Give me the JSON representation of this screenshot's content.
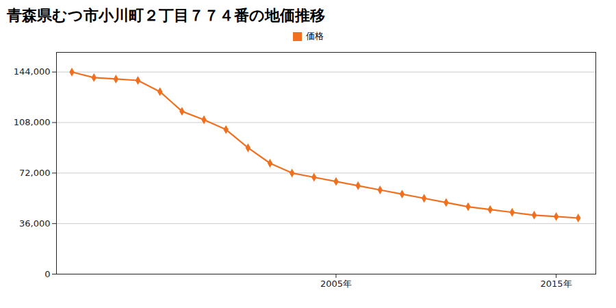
{
  "chart_data": {
    "type": "line",
    "title": "青森県むつ市小川町２丁目７７４番の地価推移",
    "x": [
      1993,
      1994,
      1995,
      1996,
      1997,
      1998,
      1999,
      2000,
      2001,
      2002,
      2003,
      2004,
      2005,
      2006,
      2007,
      2008,
      2009,
      2010,
      2011,
      2012,
      2013,
      2014,
      2015,
      2016
    ],
    "series": [
      {
        "name": "価格",
        "color": "#f07020",
        "marker": "diamond",
        "values": [
          144000,
          140000,
          139000,
          138000,
          130000,
          116000,
          110000,
          103000,
          90000,
          79000,
          72000,
          69000,
          66000,
          63000,
          60000,
          57000,
          54000,
          51000,
          48000,
          46000,
          44000,
          42000,
          41000,
          40000
        ]
      }
    ],
    "xlim": [
      1992.3,
      2016.8
    ],
    "xticks": [
      {
        "value": 2005,
        "label": "2005年"
      },
      {
        "value": 2015,
        "label": "2015年"
      }
    ],
    "ylim": [
      0,
      158000
    ],
    "yticks": [
      0,
      {
        "value": 36000,
        "label": "36,000"
      },
      {
        "value": 72000,
        "label": "72,000"
      },
      {
        "value": 108000,
        "label": "108,000"
      },
      {
        "value": 144000,
        "label": "144,000"
      }
    ],
    "grid": "y",
    "legend": "top"
  }
}
